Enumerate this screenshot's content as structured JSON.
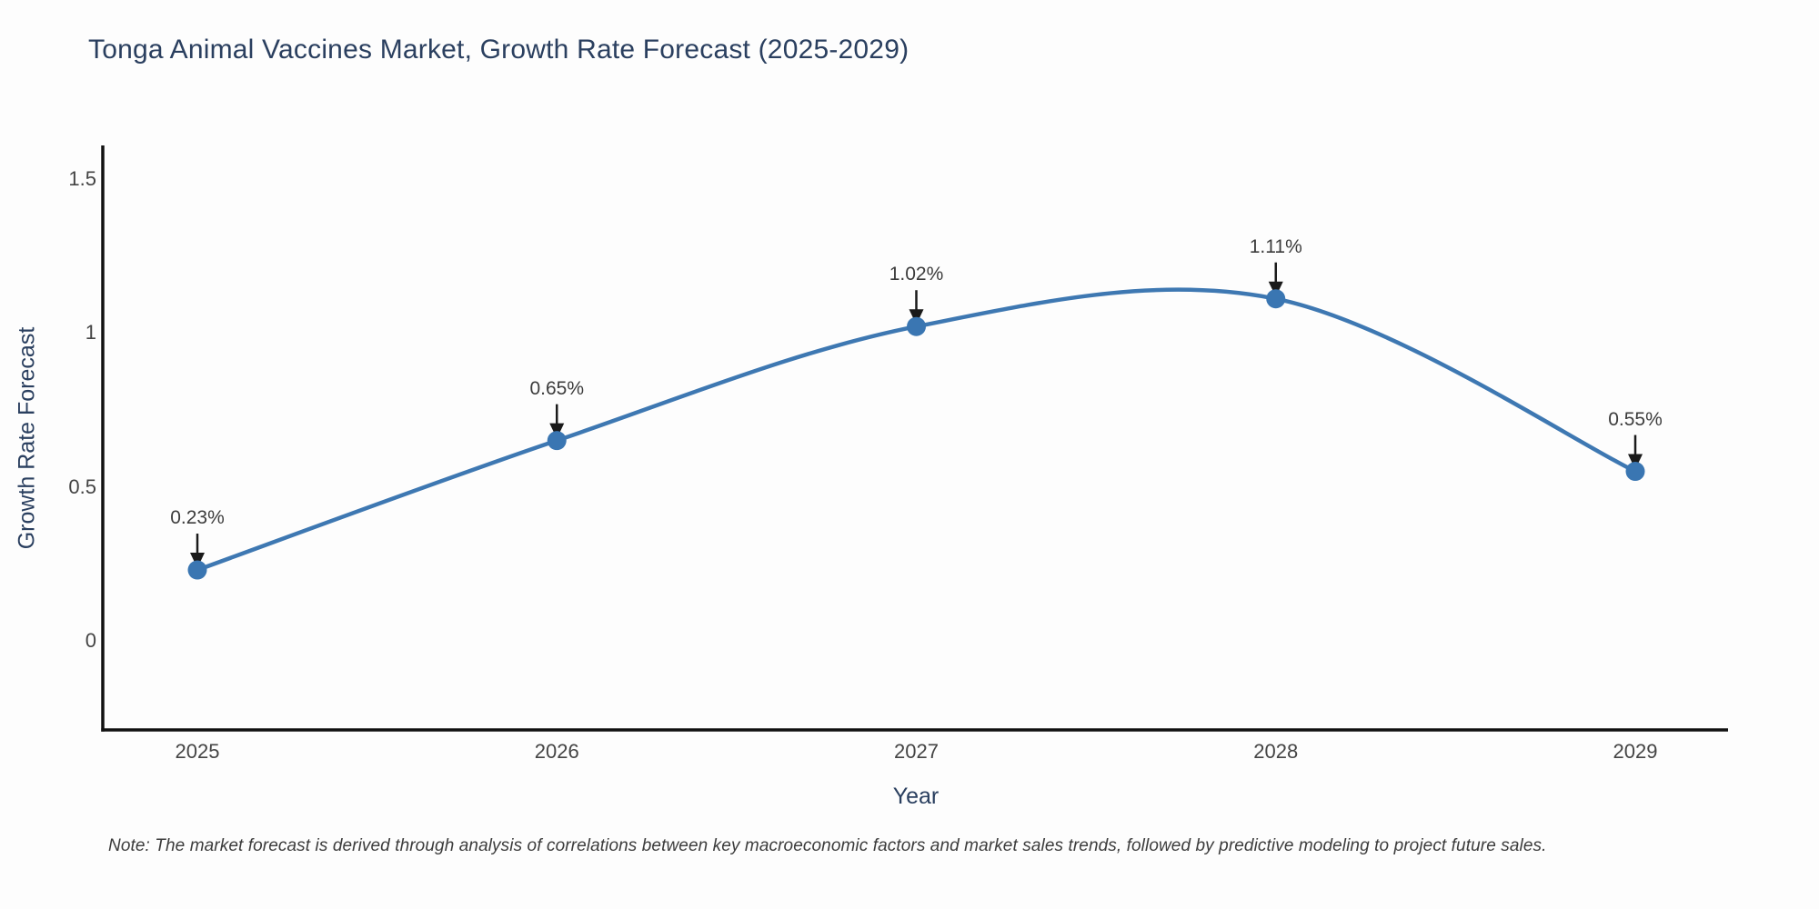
{
  "chart_data": {
    "type": "line",
    "title": "Tonga Animal Vaccines Market, Growth Rate Forecast (2025-2029)",
    "categories": [
      "2025",
      "2026",
      "2027",
      "2028",
      "2029"
    ],
    "values": [
      0.23,
      0.65,
      1.02,
      1.11,
      0.55
    ],
    "point_labels": [
      "0.23%",
      "0.65%",
      "1.02%",
      "1.11%",
      "0.55%"
    ],
    "series_name": "Growth Rate Forecast",
    "xlabel": "Year",
    "ylabel": "Growth Rate Forecast",
    "y_ticks": [
      "1.5",
      "1",
      "0.5",
      "0"
    ],
    "ylim": [
      -0.29,
      1.6
    ],
    "line_style": "spline-smoothed",
    "markers": true,
    "annotations_arrows": true,
    "grid": false,
    "legend": false,
    "colors": {
      "line": "#3e78b2",
      "marker": "#3a76b2",
      "axis": "#111111",
      "title_text": "#2a3f5f",
      "tick_text": "#444444",
      "arrow": "#1a1a1a"
    },
    "note": "Note: The market forecast is derived through analysis of correlations between key macroeconomic factors and market sales trends, followed by predictive modeling to project future sales."
  }
}
